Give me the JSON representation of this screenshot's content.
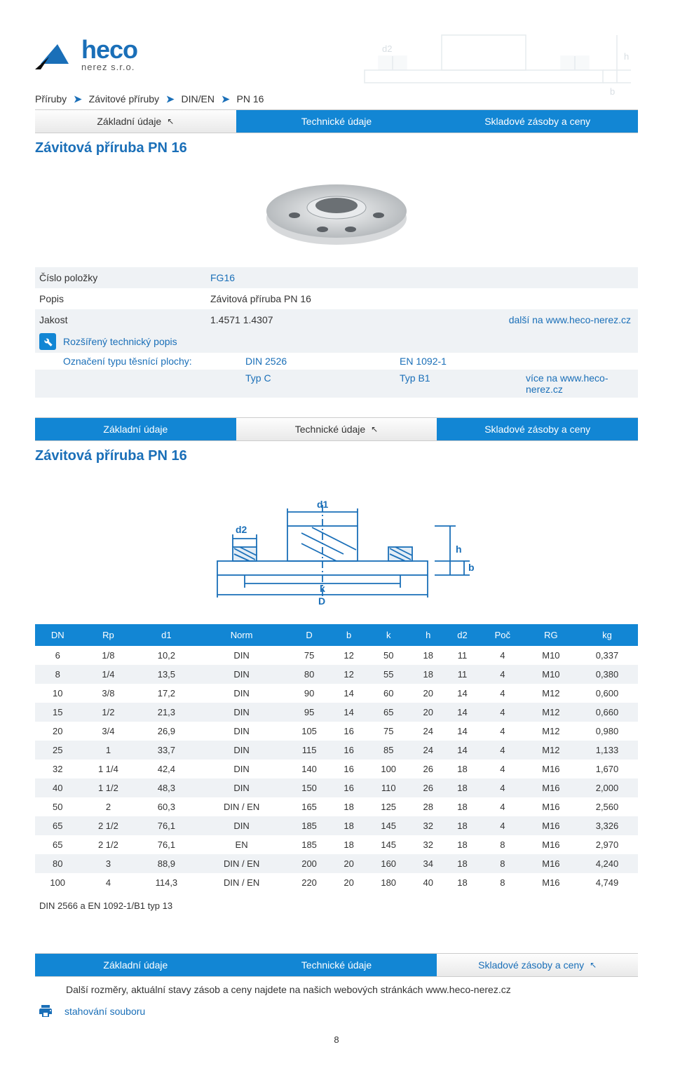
{
  "logo": {
    "word": "heco",
    "sub": "nerez s.r.o.",
    "mark_color": "#1a6fb8"
  },
  "breadcrumb": [
    "Příruby",
    "Závitové příruby",
    "DIN/EN",
    "PN 16"
  ],
  "tabs": {
    "t1": "Základní údaje",
    "t2": "Technické údaje",
    "t3": "Skladové zásoby a ceny"
  },
  "product_title": "Závitová příruba PN 16",
  "specs": {
    "item_no_label": "Číslo položky",
    "item_no_value": "FG16",
    "desc_label": "Popis",
    "desc_value": "Závitová příruba PN 16",
    "grade_label": "Jakost",
    "grade_value": "1.4571   1.4307",
    "grade_extra": "další na www.heco-nerez.cz"
  },
  "ext_desc_label": "Rozšířený technický popis",
  "seal": {
    "label": "Označení typu těsnící plochy:",
    "din": "DIN 2526",
    "typc": "Typ C",
    "en": "EN 1092-1",
    "typb": "Typ B1",
    "more": "více na www.heco-nerez.cz"
  },
  "columns": [
    "DN",
    "Rp",
    "d1",
    "Norm",
    "D",
    "b",
    "k",
    "h",
    "d2",
    "Poč",
    "RG",
    "kg"
  ],
  "rows": [
    [
      "6",
      "1/8",
      "10,2",
      "DIN",
      "75",
      "12",
      "50",
      "18",
      "11",
      "4",
      "M10",
      "0,337"
    ],
    [
      "8",
      "1/4",
      "13,5",
      "DIN",
      "80",
      "12",
      "55",
      "18",
      "11",
      "4",
      "M10",
      "0,380"
    ],
    [
      "10",
      "3/8",
      "17,2",
      "DIN",
      "90",
      "14",
      "60",
      "20",
      "14",
      "4",
      "M12",
      "0,600"
    ],
    [
      "15",
      "1/2",
      "21,3",
      "DIN",
      "95",
      "14",
      "65",
      "20",
      "14",
      "4",
      "M12",
      "0,660"
    ],
    [
      "20",
      "3/4",
      "26,9",
      "DIN",
      "105",
      "16",
      "75",
      "24",
      "14",
      "4",
      "M12",
      "0,980"
    ],
    [
      "25",
      "1",
      "33,7",
      "DIN",
      "115",
      "16",
      "85",
      "24",
      "14",
      "4",
      "M12",
      "1,133"
    ],
    [
      "32",
      "1 1/4",
      "42,4",
      "DIN",
      "140",
      "16",
      "100",
      "26",
      "18",
      "4",
      "M16",
      "1,670"
    ],
    [
      "40",
      "1 1/2",
      "48,3",
      "DIN",
      "150",
      "16",
      "110",
      "26",
      "18",
      "4",
      "M16",
      "2,000"
    ],
    [
      "50",
      "2",
      "60,3",
      "DIN / EN",
      "165",
      "18",
      "125",
      "28",
      "18",
      "4",
      "M16",
      "2,560"
    ],
    [
      "65",
      "2 1/2",
      "76,1",
      "DIN",
      "185",
      "18",
      "145",
      "32",
      "18",
      "4",
      "M16",
      "3,326"
    ],
    [
      "65",
      "2 1/2",
      "76,1",
      "EN",
      "185",
      "18",
      "145",
      "32",
      "18",
      "8",
      "M16",
      "2,970"
    ],
    [
      "80",
      "3",
      "88,9",
      "DIN / EN",
      "200",
      "20",
      "160",
      "34",
      "18",
      "8",
      "M16",
      "4,240"
    ],
    [
      "100",
      "4",
      "114,3",
      "DIN / EN",
      "220",
      "20",
      "180",
      "40",
      "18",
      "8",
      "M16",
      "4,749"
    ]
  ],
  "table_footnote": "DIN 2566 a EN 1092-1/B1 typ 13",
  "bottom_note": "Další rozměry, aktuální stavy zásob a ceny najdete na našich webových stránkách www.heco-nerez.cz",
  "download": "stahování souboru",
  "page_number": "8",
  "colors": {
    "primary": "#1286d4",
    "blue_text": "#1a6fb8",
    "row_alt": "#eff2f5"
  },
  "diagram": {
    "labels": {
      "d1": "d1",
      "d2": "d2",
      "k": "k",
      "D": "D",
      "h": "h",
      "b": "b"
    },
    "line_color": "#1a6fb8",
    "hatch_color": "#1a6fb8"
  }
}
